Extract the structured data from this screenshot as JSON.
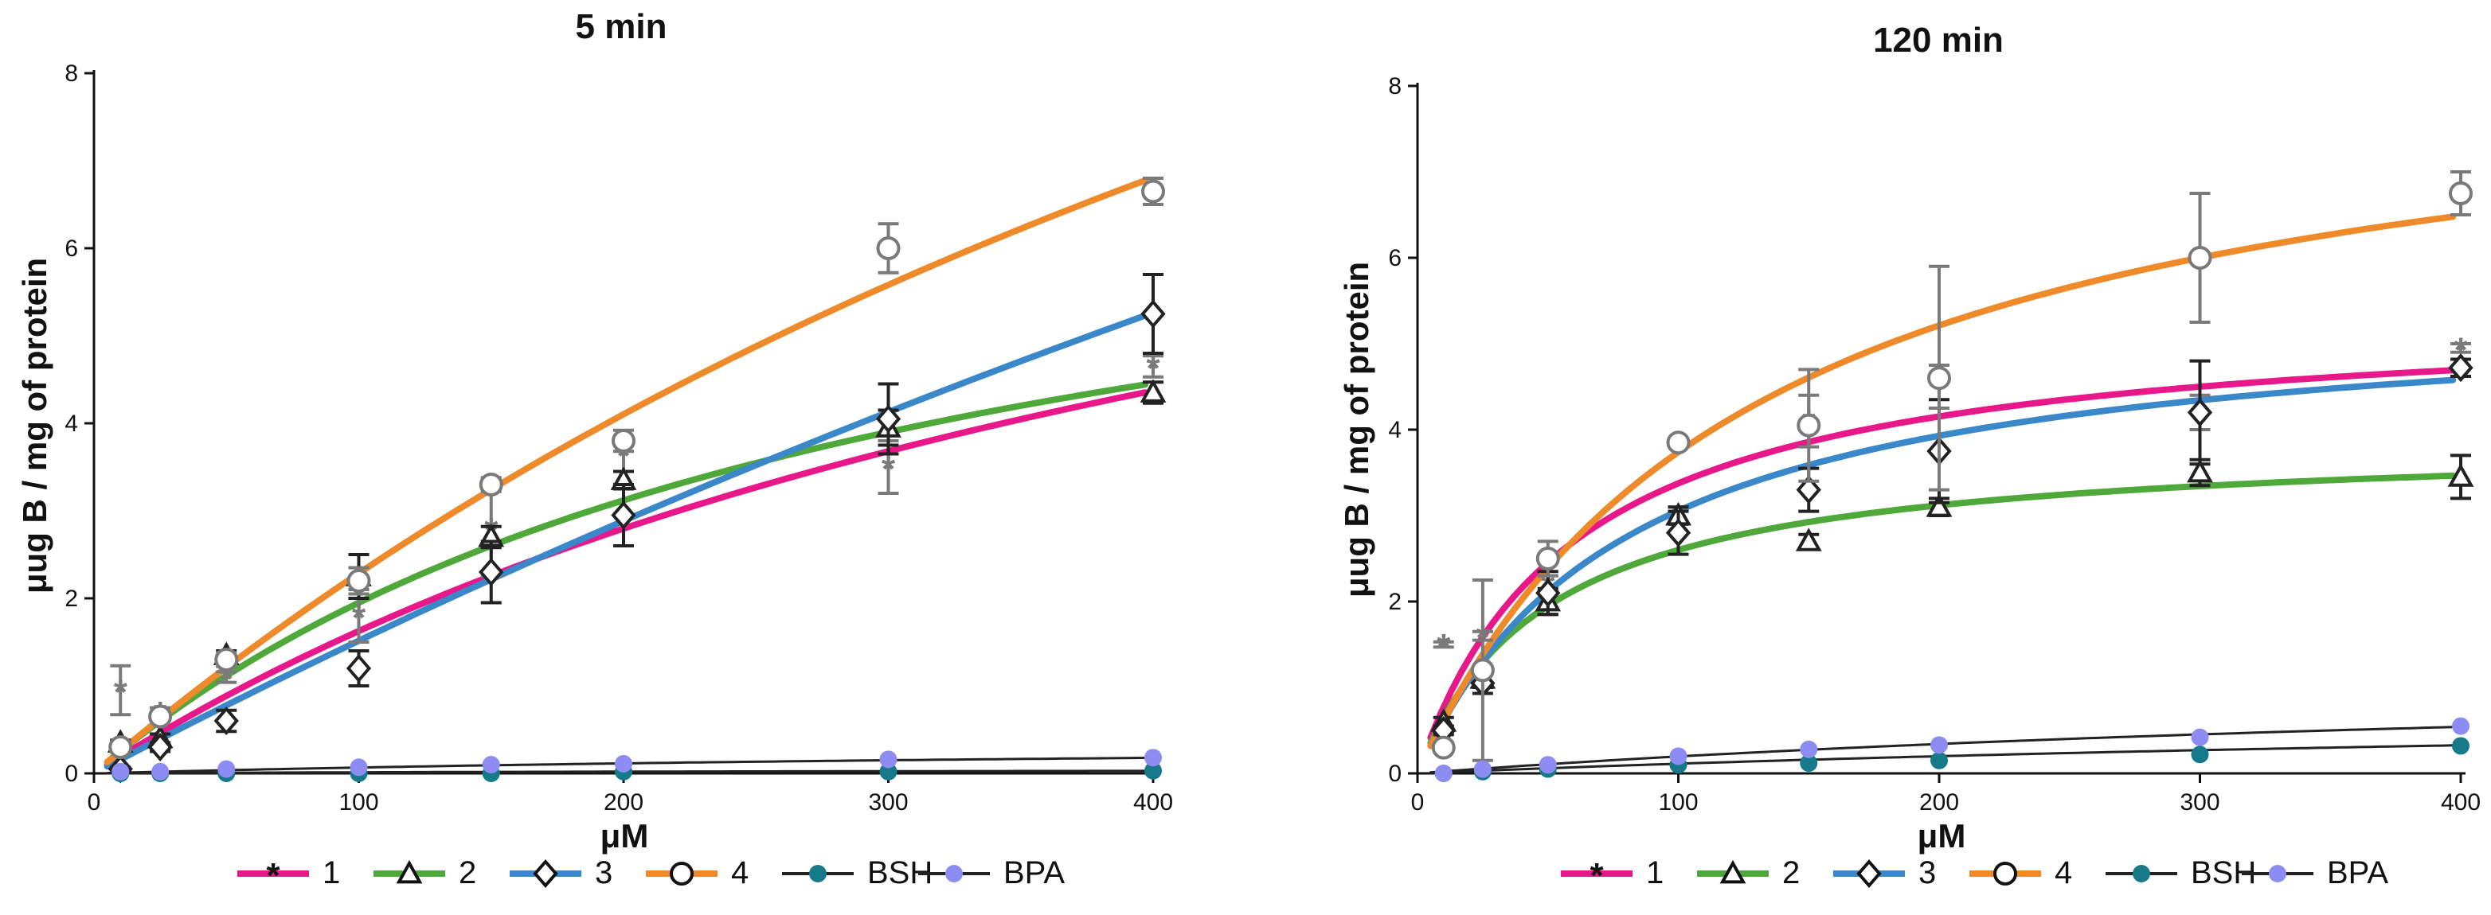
{
  "chart_data": [
    {
      "type": "scatter",
      "title": "5 min",
      "xlabel": "μM",
      "ylabel": "μug B / mg of protein",
      "xlim": [
        0,
        400
      ],
      "ylim": [
        0,
        8
      ],
      "xticks": [
        0,
        100,
        200,
        300,
        400
      ],
      "yticks": [
        0,
        2,
        4,
        6,
        8
      ],
      "grid": false,
      "legend_position": "bottom",
      "series": [
        {
          "name": "1",
          "marker": "star",
          "color": "#e8178a",
          "point_color": "#7a7a7a",
          "x": [
            10,
            25,
            50,
            100,
            150,
            200,
            300,
            400
          ],
          "y": [
            0.95,
            0.7,
            1.1,
            1.8,
            2.8,
            3.65,
            3.5,
            4.65
          ],
          "err": [
            0.28,
            0.05,
            0.06,
            0.3,
            0.55,
            0.2,
            0.3,
            0.12
          ],
          "fit": {
            "vmax": 10.0,
            "km": 515
          }
        },
        {
          "name": "2",
          "marker": "triangle",
          "color": "#4ea83a",
          "point_color": "#222",
          "x": [
            10,
            25,
            50,
            100,
            150,
            200,
            300,
            400
          ],
          "y": [
            0.35,
            0.4,
            1.35,
            2.25,
            2.7,
            3.35,
            3.95,
            4.35
          ],
          "err": [
            0.03,
            0.05,
            0.05,
            0.25,
            0.12,
            0.1,
            0.2,
            0.12
          ],
          "fit": {
            "vmax": 7.8,
            "km": 300
          }
        },
        {
          "name": "3",
          "marker": "diamond",
          "color": "#3a87c9",
          "point_color": "#222",
          "x": [
            10,
            25,
            50,
            100,
            150,
            200,
            300,
            400
          ],
          "y": [
            0.05,
            0.3,
            0.6,
            1.2,
            2.3,
            2.95,
            4.05,
            5.25
          ],
          "err": [
            0.02,
            0.05,
            0.12,
            0.2,
            0.35,
            0.35,
            0.4,
            0.45
          ],
          "fit": {
            "vmax": 30.0,
            "km": 1880
          }
        },
        {
          "name": "4",
          "marker": "circle",
          "color": "#ee8a2a",
          "point_color": "#7a7a7a",
          "x": [
            10,
            25,
            50,
            100,
            150,
            200,
            300,
            400
          ],
          "y": [
            0.3,
            0.65,
            1.3,
            2.2,
            3.3,
            3.8,
            6.0,
            6.65
          ],
          "err": [
            0.04,
            0.05,
            0.08,
            0.15,
            0.08,
            0.12,
            0.28,
            0.15
          ],
          "fit": {
            "vmax": 20.0,
            "km": 775
          }
        },
        {
          "name": "BSH",
          "marker": "dot",
          "color": "#222222",
          "point_color": "#167a8a",
          "x": [
            10,
            25,
            50,
            100,
            150,
            200,
            300,
            400
          ],
          "y": [
            0.0,
            0.0,
            0.0,
            0.0,
            0.0,
            0.02,
            0.02,
            0.03
          ],
          "fit": {
            "vmax": 0.05,
            "km": 300
          }
        },
        {
          "name": "BPA",
          "marker": "dot",
          "color": "#222222",
          "point_color": "#8c8cf2",
          "x": [
            10,
            25,
            50,
            100,
            150,
            200,
            300,
            400
          ],
          "y": [
            0.02,
            0.02,
            0.05,
            0.07,
            0.1,
            0.11,
            0.16,
            0.18
          ],
          "fit": {
            "vmax": 0.4,
            "km": 500
          }
        }
      ]
    },
    {
      "type": "scatter",
      "title": "120 min",
      "xlabel": "μM",
      "ylabel": "μug B / mg of protein",
      "xlim": [
        0,
        400
      ],
      "ylim": [
        0,
        8
      ],
      "xticks": [
        0,
        100,
        200,
        300,
        400
      ],
      "yticks": [
        0,
        2,
        4,
        6,
        8
      ],
      "grid": false,
      "legend_position": "bottom",
      "series": [
        {
          "name": "1",
          "marker": "star",
          "color": "#e8178a",
          "point_color": "#7a7a7a",
          "x": [
            10,
            25,
            50,
            100,
            150,
            200,
            300,
            400
          ],
          "y": [
            1.5,
            1.6,
            2.2,
            3.0,
            4.1,
            4.5,
            4.2,
            4.95
          ],
          "err": [
            0.03,
            0.05,
            0.1,
            0.1,
            0.3,
            0.25,
            0.2,
            0.05
          ],
          "fit": {
            "vmax": 5.4,
            "km": 60
          }
        },
        {
          "name": "2",
          "marker": "triangle",
          "color": "#4ea83a",
          "point_color": "#222",
          "x": [
            10,
            25,
            50,
            100,
            150,
            200,
            300,
            400
          ],
          "y": [
            0.6,
            1.1,
            2.0,
            3.0,
            2.7,
            3.1,
            3.5,
            3.45
          ],
          "err": [
            0.05,
            0.1,
            0.15,
            0.1,
            0.08,
            0.1,
            0.15,
            0.25
          ],
          "fit": {
            "vmax": 3.9,
            "km": 50
          }
        },
        {
          "name": "3",
          "marker": "diamond",
          "color": "#3a87c9",
          "point_color": "#222",
          "x": [
            10,
            25,
            50,
            100,
            150,
            200,
            300,
            400
          ],
          "y": [
            0.5,
            1.05,
            2.1,
            2.8,
            3.3,
            3.75,
            4.2,
            4.72
          ],
          "err": [
            0.05,
            0.12,
            0.25,
            0.25,
            0.25,
            0.6,
            0.6,
            0.1
          ],
          "fit": {
            "vmax": 5.5,
            "km": 80
          }
        },
        {
          "name": "4",
          "marker": "circle",
          "color": "#ee8a2a",
          "point_color": "#7a7a7a",
          "x": [
            10,
            25,
            50,
            100,
            150,
            200,
            300,
            400
          ],
          "y": [
            0.3,
            1.2,
            2.5,
            3.85,
            4.05,
            4.6,
            6.0,
            6.75
          ],
          "err": [
            0.05,
            1.05,
            0.2,
            0.05,
            0.65,
            1.3,
            0.75,
            0.25
          ],
          "fit": {
            "vmax": 8.6,
            "km": 130
          }
        },
        {
          "name": "BSH",
          "marker": "dot",
          "color": "#222222",
          "point_color": "#167a8a",
          "x": [
            10,
            25,
            50,
            100,
            150,
            200,
            300,
            400
          ],
          "y": [
            0.0,
            0.02,
            0.05,
            0.1,
            0.12,
            0.15,
            0.22,
            0.32
          ],
          "fit": {
            "vmax": 0.9,
            "km": 700
          }
        },
        {
          "name": "BPA",
          "marker": "dot",
          "color": "#222222",
          "point_color": "#8c8cf2",
          "x": [
            10,
            25,
            50,
            100,
            150,
            200,
            300,
            400
          ],
          "y": [
            0.0,
            0.05,
            0.1,
            0.2,
            0.28,
            0.33,
            0.42,
            0.55
          ],
          "fit": {
            "vmax": 1.3,
            "km": 560
          }
        }
      ]
    }
  ]
}
